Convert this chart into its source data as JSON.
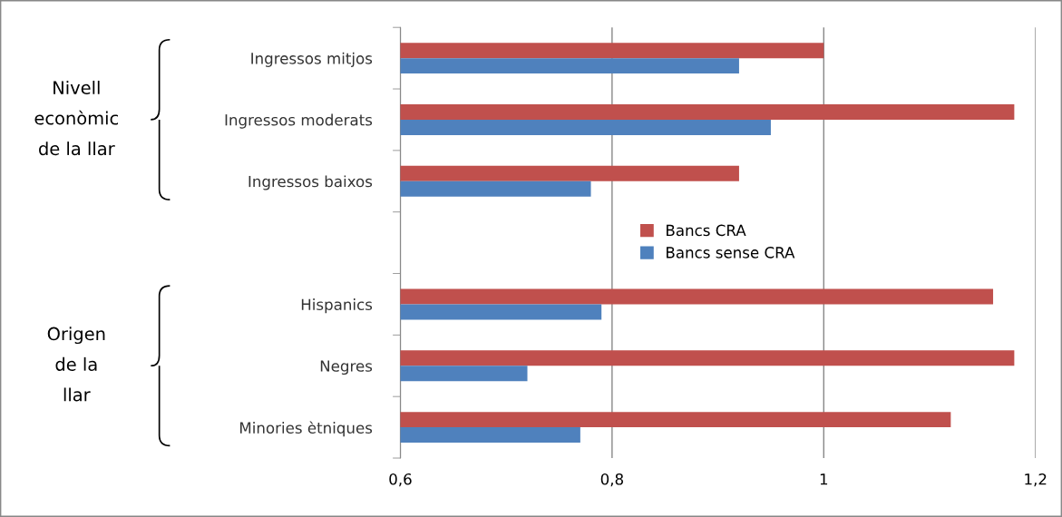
{
  "chart_data": {
    "type": "bar",
    "orientation": "horizontal",
    "categories": [
      "Ingressos mitjos",
      "Ingressos moderats",
      "Ingressos baixos",
      null,
      "Hispanics",
      "Negres",
      "Minories ètniques"
    ],
    "series": [
      {
        "name": "Bancs CRA",
        "color": "#c0504d",
        "values": [
          1.0,
          1.18,
          0.92,
          null,
          1.16,
          1.18,
          1.12
        ]
      },
      {
        "name": "Bancs sense CRA",
        "color": "#4f81bd",
        "values": [
          0.92,
          0.95,
          0.78,
          null,
          0.79,
          0.72,
          0.77
        ]
      }
    ],
    "xlim": [
      0.6,
      1.2
    ],
    "xticks": [
      {
        "value": 0.6,
        "label": "0,6"
      },
      {
        "value": 0.8,
        "label": "0,8"
      },
      {
        "value": 1.0,
        "label": "1"
      },
      {
        "value": 1.2,
        "label": "1,2"
      }
    ],
    "grid": "x",
    "legend": "center",
    "annotations": [
      "Nivell\neconòmic\nde la llar",
      "Origen\nde la\nllar"
    ]
  }
}
